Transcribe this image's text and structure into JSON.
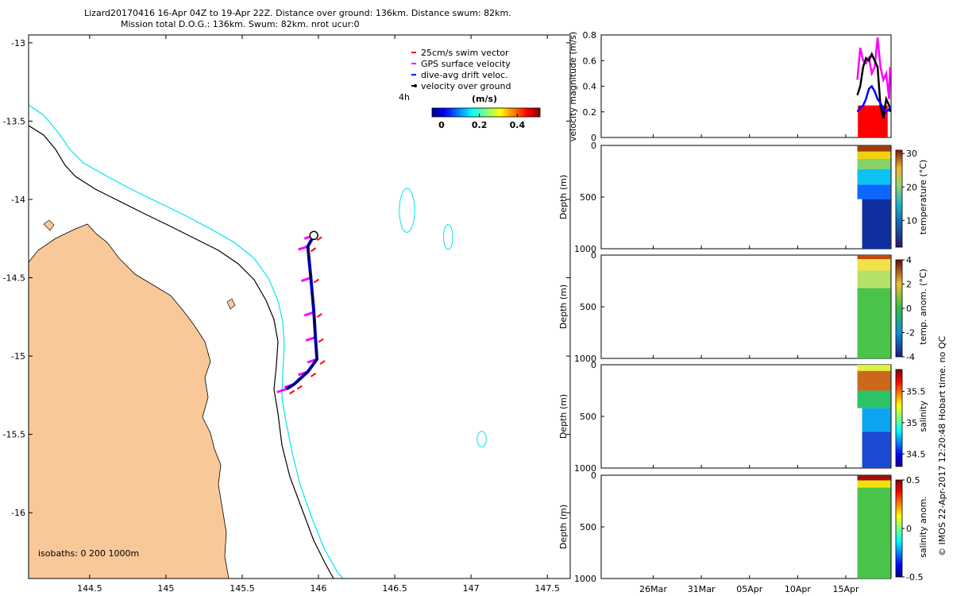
{
  "header": {
    "line1": "Lizard20170416 16-Apr 04Z to 19-Apr 22Z. Distance over ground: 136km. Distance swum: 82km.",
    "line2": "Mission total D.O.G.: 136km. Swum: 82km. nrot ucur:0"
  },
  "copyright": "© IMOS 22-Apr-2017 12:20:48 Hobart time. no QC",
  "colors": {
    "land": "#f8c898",
    "isobath_200": "#000000",
    "isobath_1000": "#00e5ee",
    "swim_vector": "#ff0000",
    "gps_velocity": "#ff00ff",
    "drift_velocity": "#0000ff",
    "ground_velocity": "#000000"
  },
  "chart_data": [
    {
      "type": "scatter",
      "name": "track-map",
      "x_ticks": [
        "144.5",
        "145",
        "145.5",
        "146",
        "146.5",
        "147",
        "147.5"
      ],
      "y_ticks": [
        "-13",
        "-13.5",
        "-14",
        "-14.5",
        "-15",
        "-15.5",
        "-16"
      ],
      "xlim": [
        144.1,
        147.65
      ],
      "ylim": [
        -16.42,
        -12.95
      ],
      "legend": {
        "position": "top-right",
        "items": [
          {
            "label": "25cm/s swim vector",
            "color": "#ff0000"
          },
          {
            "label": "GPS surface velocity",
            "color": "#ff00ff"
          },
          {
            "label": "dive-avg drift veloc.",
            "color": "#0000ff"
          },
          {
            "label": "velocity over ground",
            "color": "#000000"
          }
        ]
      },
      "interval_label": "4h",
      "colorbar": {
        "title": "(m/s)",
        "ticks": [
          "0",
          "0.2",
          "0.4"
        ],
        "range": [
          -0.05,
          0.52
        ]
      },
      "isobath_label": "isobaths: 0   200  1000m",
      "track": [
        {
          "lon": 145.97,
          "lat": -14.23
        },
        {
          "lon": 145.93,
          "lat": -14.3
        },
        {
          "lon": 145.95,
          "lat": -14.5
        },
        {
          "lon": 145.97,
          "lat": -14.72
        },
        {
          "lon": 145.98,
          "lat": -14.88
        },
        {
          "lon": 145.99,
          "lat": -15.02
        },
        {
          "lon": 145.93,
          "lat": -15.1
        },
        {
          "lon": 145.84,
          "lat": -15.18
        },
        {
          "lon": 145.79,
          "lat": -15.21
        }
      ],
      "reefs": [
        {
          "lon": 146.58,
          "lat": -14.07,
          "rx": 0.05,
          "ry": 0.14
        },
        {
          "lon": 146.85,
          "lat": -14.24,
          "rx": 0.03,
          "ry": 0.08
        },
        {
          "lon": 147.07,
          "lat": -15.53,
          "rx": 0.03,
          "ry": 0.05
        }
      ]
    },
    {
      "type": "line",
      "name": "velocity-magnitude",
      "ylabel": "velocity magnitude (m/s)",
      "ylim": [
        0,
        0.8
      ],
      "y_ticks": [
        "0",
        "0.2",
        "0.4",
        "0.6",
        "0.8"
      ],
      "x_ticks": [
        "26Mar",
        "31Mar",
        "05Apr",
        "10Apr",
        "15Apr"
      ],
      "x_tick_days": [
        -10,
        -5,
        0,
        5,
        10
      ],
      "xlim_days": [
        -15.4,
        14.7
      ],
      "series": [
        {
          "color": "#ff00ff",
          "x": [
            11.2,
            11.5,
            11.8,
            12.1,
            12.4,
            12.7,
            13.0,
            13.3,
            13.6,
            13.9,
            14.2,
            14.5,
            14.6
          ],
          "y": [
            0.45,
            0.7,
            0.6,
            0.58,
            0.62,
            0.5,
            0.55,
            0.78,
            0.55,
            0.45,
            0.5,
            0.3,
            0.55
          ]
        },
        {
          "color": "#000000",
          "x": [
            11.2,
            11.5,
            11.8,
            12.1,
            12.4,
            12.7,
            13.0,
            13.3,
            13.6,
            13.9,
            14.2,
            14.5,
            14.6
          ],
          "y": [
            0.33,
            0.4,
            0.55,
            0.62,
            0.6,
            0.65,
            0.6,
            0.55,
            0.25,
            0.15,
            0.3,
            0.25,
            0.2
          ]
        },
        {
          "color": "#0000ff",
          "x": [
            11.2,
            11.5,
            11.8,
            12.1,
            12.4,
            12.7,
            13.0,
            13.3,
            13.6,
            13.9,
            14.2,
            14.5,
            14.6
          ],
          "y": [
            0.2,
            0.23,
            0.25,
            0.3,
            0.38,
            0.4,
            0.36,
            0.3,
            0.27,
            0.22,
            0.2,
            0.22,
            0.24
          ]
        }
      ],
      "swim_fill": {
        "color": "#ff0000",
        "x": [
          11.25,
          14.35
        ],
        "y": 0.25
      }
    },
    {
      "type": "heatmap",
      "name": "temperature-section",
      "ylabel": "Depth (m)",
      "y_ticks": [
        "0",
        "500",
        "1000"
      ],
      "ylim": [
        1000,
        0
      ],
      "colorbar": {
        "label": "temperature (°C)",
        "ticks": [
          "10",
          "20",
          "30"
        ],
        "range": [
          2,
          31
        ]
      },
      "bands": [
        [
          0,
          60,
          "#9a3000"
        ],
        [
          60,
          130,
          "#f0d000"
        ],
        [
          130,
          230,
          "#80d060"
        ],
        [
          230,
          380,
          "#00c0f0"
        ],
        [
          380,
          520,
          "#0060ff"
        ],
        [
          520,
          1000,
          "#00249a"
        ]
      ]
    },
    {
      "type": "heatmap",
      "name": "temp-anomaly-section",
      "ylabel": "Depth (m)",
      "y_ticks": [
        "0",
        "500",
        "1000"
      ],
      "ylim": [
        1000,
        0
      ],
      "colorbar": {
        "label": "temp. anom. (°C)",
        "ticks": [
          "-4",
          "-2",
          "0",
          "2",
          "4"
        ],
        "range": [
          -4,
          4
        ]
      },
      "bands": [
        [
          0,
          40,
          "#c04000"
        ],
        [
          40,
          150,
          "#f0e040"
        ],
        [
          150,
          320,
          "#b0e060"
        ],
        [
          320,
          1000,
          "#40c040"
        ]
      ]
    },
    {
      "type": "heatmap",
      "name": "salinity-section",
      "ylabel": "Depth (m)",
      "y_ticks": [
        "0",
        "500",
        "1000"
      ],
      "ylim": [
        1000,
        0
      ],
      "colorbar": {
        "label": "salinity",
        "ticks": [
          "34.5",
          "35",
          "35.5"
        ],
        "range": [
          34.3,
          35.85
        ]
      },
      "bands": [
        [
          0,
          60,
          "#e0f030"
        ],
        [
          60,
          250,
          "#c86010"
        ],
        [
          250,
          420,
          "#20c060"
        ],
        [
          420,
          650,
          "#00a0f0"
        ],
        [
          650,
          1000,
          "#1040d0"
        ]
      ]
    },
    {
      "type": "heatmap",
      "name": "salinity-anomaly-section",
      "ylabel": "Depth (m)",
      "y_ticks": [
        "0",
        "500",
        "1000"
      ],
      "ylim": [
        1000,
        0
      ],
      "colorbar": {
        "label": "salinity anom.",
        "ticks": [
          "-0.5",
          "0",
          "0.5"
        ],
        "range": [
          -0.5,
          0.5
        ]
      },
      "bands": [
        [
          0,
          50,
          "#a00000"
        ],
        [
          50,
          120,
          "#f0e000"
        ],
        [
          120,
          1000,
          "#40c040"
        ]
      ]
    }
  ]
}
